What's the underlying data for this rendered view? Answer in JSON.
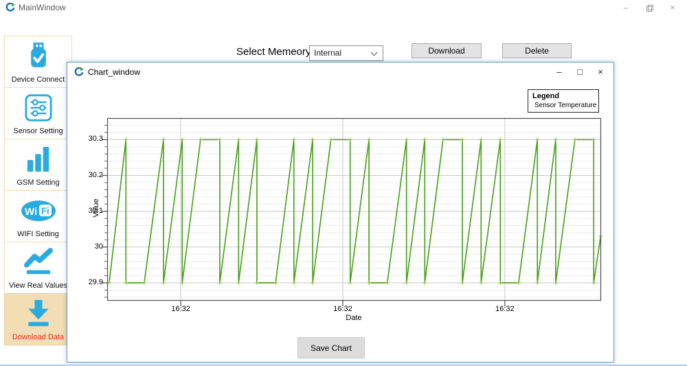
{
  "main_window": {
    "title": "MainWindow"
  },
  "window_controls": {
    "minimize": "–",
    "maximize": "□",
    "close": "×"
  },
  "sidebar": {
    "accent_color": "#29abe2",
    "selected_bg": "#f2ddb4",
    "selected_text_color": "#f3261c",
    "items": [
      {
        "label": "Device Connect",
        "icon": "usb-check-icon",
        "selected": false
      },
      {
        "label": "Sensor Setting",
        "icon": "sliders-icon",
        "selected": false
      },
      {
        "label": "GSM Setting",
        "icon": "signal-bars-icon",
        "selected": false
      },
      {
        "label": "WIFI Setting",
        "icon": "wifi-icon",
        "selected": false
      },
      {
        "label": "View Real Values",
        "icon": "trend-line-icon",
        "selected": false
      },
      {
        "label": "Download Data",
        "icon": "download-arrow-icon",
        "selected": true
      }
    ],
    "wifi_icon_text": {
      "wi": "Wi",
      "fi": "Fi"
    }
  },
  "toolbar": {
    "memory_label": "Select Memeory",
    "memory_value": "Internal",
    "download_button": "Download",
    "delete_button": "Delete"
  },
  "chart_window": {
    "title": "Chart_window",
    "save_button": "Save Chart"
  },
  "chart_data": {
    "type": "line",
    "title": "",
    "legend": {
      "title": "Legend",
      "entries": [
        "Sensor Temperature"
      ],
      "position": "top-right"
    },
    "grid": {
      "major_color": "#c9c9c9",
      "minor_color": "#ededed",
      "border_color": "#4d4d4d"
    },
    "series": [
      {
        "name": "Sensor Temperature",
        "color": "#4ca31f",
        "marker_color": "#8cc63f",
        "points": [
          [
            0.004,
            29.9
          ],
          [
            0.038,
            30.3
          ],
          [
            0.038,
            29.9
          ],
          [
            0.075,
            29.9
          ],
          [
            0.114,
            30.3
          ],
          [
            0.114,
            29.9
          ],
          [
            0.152,
            30.3
          ],
          [
            0.152,
            29.9
          ],
          [
            0.189,
            30.3
          ],
          [
            0.228,
            30.3
          ],
          [
            0.228,
            29.9
          ],
          [
            0.266,
            30.3
          ],
          [
            0.266,
            29.9
          ],
          [
            0.303,
            30.3
          ],
          [
            0.303,
            29.9
          ],
          [
            0.341,
            29.9
          ],
          [
            0.378,
            30.3
          ],
          [
            0.378,
            29.9
          ],
          [
            0.416,
            30.3
          ],
          [
            0.416,
            29.9
          ],
          [
            0.453,
            30.3
          ],
          [
            0.492,
            30.3
          ],
          [
            0.492,
            29.9
          ],
          [
            0.53,
            30.3
          ],
          [
            0.53,
            29.9
          ],
          [
            0.567,
            29.9
          ],
          [
            0.606,
            30.3
          ],
          [
            0.606,
            29.9
          ],
          [
            0.643,
            30.3
          ],
          [
            0.643,
            29.9
          ],
          [
            0.68,
            30.3
          ],
          [
            0.719,
            30.3
          ],
          [
            0.719,
            29.9
          ],
          [
            0.757,
            30.3
          ],
          [
            0.757,
            29.9
          ],
          [
            0.796,
            30.3
          ],
          [
            0.796,
            29.9
          ],
          [
            0.833,
            29.9
          ],
          [
            0.871,
            30.3
          ],
          [
            0.871,
            29.9
          ],
          [
            0.908,
            30.3
          ],
          [
            0.908,
            29.9
          ],
          [
            0.947,
            30.3
          ],
          [
            0.985,
            30.3
          ],
          [
            0.985,
            29.9
          ],
          [
            0.999,
            30.03
          ]
        ]
      }
    ],
    "x_axis": {
      "label": "Date",
      "ticks": [
        {
          "label": "16:32",
          "pos": 0.149
        },
        {
          "label": "16:32",
          "pos": 0.477
        },
        {
          "label": "16:32",
          "pos": 0.805
        }
      ]
    },
    "y_axis": {
      "label": "Value",
      "ticks": [
        {
          "label": "29.9",
          "value": 29.9
        },
        {
          "label": "30",
          "value": 30.0
        },
        {
          "label": "30.1",
          "value": 30.1
        },
        {
          "label": "30.2",
          "value": 30.2
        },
        {
          "label": "30.3",
          "value": 30.3
        }
      ],
      "minor_step": 0.02,
      "render_range": [
        29.85,
        30.36
      ]
    }
  }
}
